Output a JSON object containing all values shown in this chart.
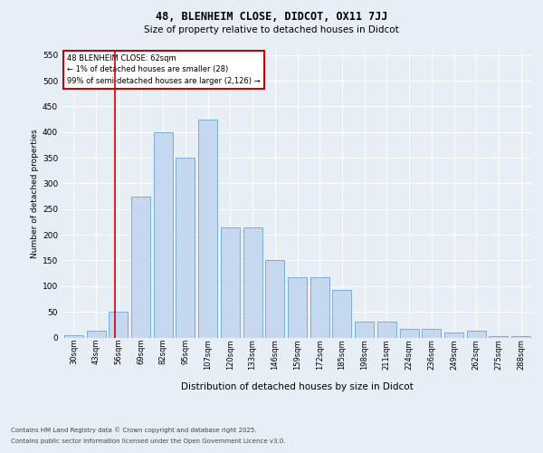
{
  "title1": "48, BLENHEIM CLOSE, DIDCOT, OX11 7JJ",
  "title2": "Size of property relative to detached houses in Didcot",
  "xlabel": "Distribution of detached houses by size in Didcot",
  "ylabel": "Number of detached properties",
  "categories": [
    "30sqm",
    "43sqm",
    "56sqm",
    "69sqm",
    "82sqm",
    "95sqm",
    "107sqm",
    "120sqm",
    "133sqm",
    "146sqm",
    "159sqm",
    "172sqm",
    "185sqm",
    "198sqm",
    "211sqm",
    "224sqm",
    "236sqm",
    "249sqm",
    "262sqm",
    "275sqm",
    "288sqm"
  ],
  "values": [
    5,
    13,
    50,
    275,
    400,
    350,
    425,
    215,
    215,
    150,
    118,
    118,
    92,
    30,
    30,
    17,
    17,
    10,
    13,
    2,
    3
  ],
  "bar_color": "#c5d8f0",
  "bar_edge_color": "#7aaed6",
  "vline_color": "#cc0000",
  "vline_x": 1.85,
  "annotation_text": "48 BLENHEIM CLOSE: 62sqm\n← 1% of detached houses are smaller (28)\n99% of semi-detached houses are larger (2,126) →",
  "annotation_box_color": "#ffffff",
  "annotation_box_edge_color": "#cc0000",
  "ylim": [
    0,
    560
  ],
  "yticks": [
    0,
    50,
    100,
    150,
    200,
    250,
    300,
    350,
    400,
    450,
    500,
    550
  ],
  "background_color": "#e8eef5",
  "grid_color": "#ffffff",
  "footer_line1": "Contains HM Land Registry data © Crown copyright and database right 2025.",
  "footer_line2": "Contains public sector information licensed under the Open Government Licence v3.0."
}
